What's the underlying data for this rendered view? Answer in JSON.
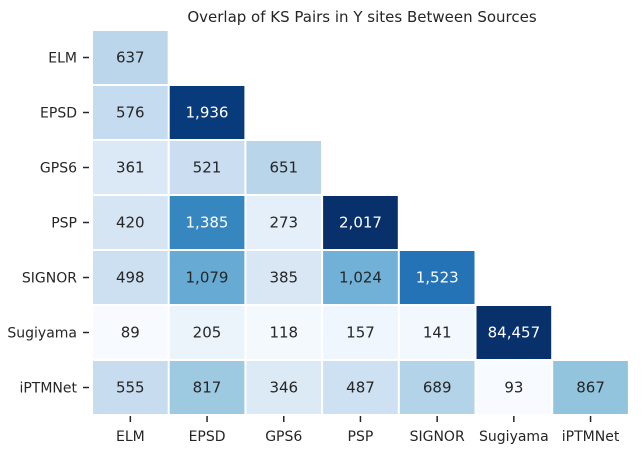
{
  "chart_data": {
    "type": "heatmap",
    "title": "Overlap of KS Pairs in Y sites Between Sources",
    "xlabel": "",
    "ylabel": "",
    "rows": [
      "ELM",
      "EPSD",
      "GPS6",
      "PSP",
      "SIGNOR",
      "Sugiyama",
      "iPTMNet"
    ],
    "columns": [
      "ELM",
      "EPSD",
      "GPS6",
      "PSP",
      "SIGNOR",
      "Sugiyama",
      "iPTMNet"
    ],
    "matrix": [
      [
        637,
        null,
        null,
        null,
        null,
        null,
        null
      ],
      [
        576,
        1936,
        null,
        null,
        null,
        null,
        null
      ],
      [
        361,
        521,
        651,
        null,
        null,
        null,
        null
      ],
      [
        420,
        1385,
        273,
        2017,
        null,
        null,
        null
      ],
      [
        498,
        1079,
        385,
        1024,
        1523,
        null,
        null
      ],
      [
        89,
        205,
        118,
        157,
        141,
        84457,
        null
      ],
      [
        555,
        817,
        346,
        487,
        689,
        93,
        867
      ]
    ],
    "colormap": "Blues",
    "value_format": "thousands-comma",
    "masked": "upper-triangle",
    "grid": false,
    "legend": "none"
  }
}
